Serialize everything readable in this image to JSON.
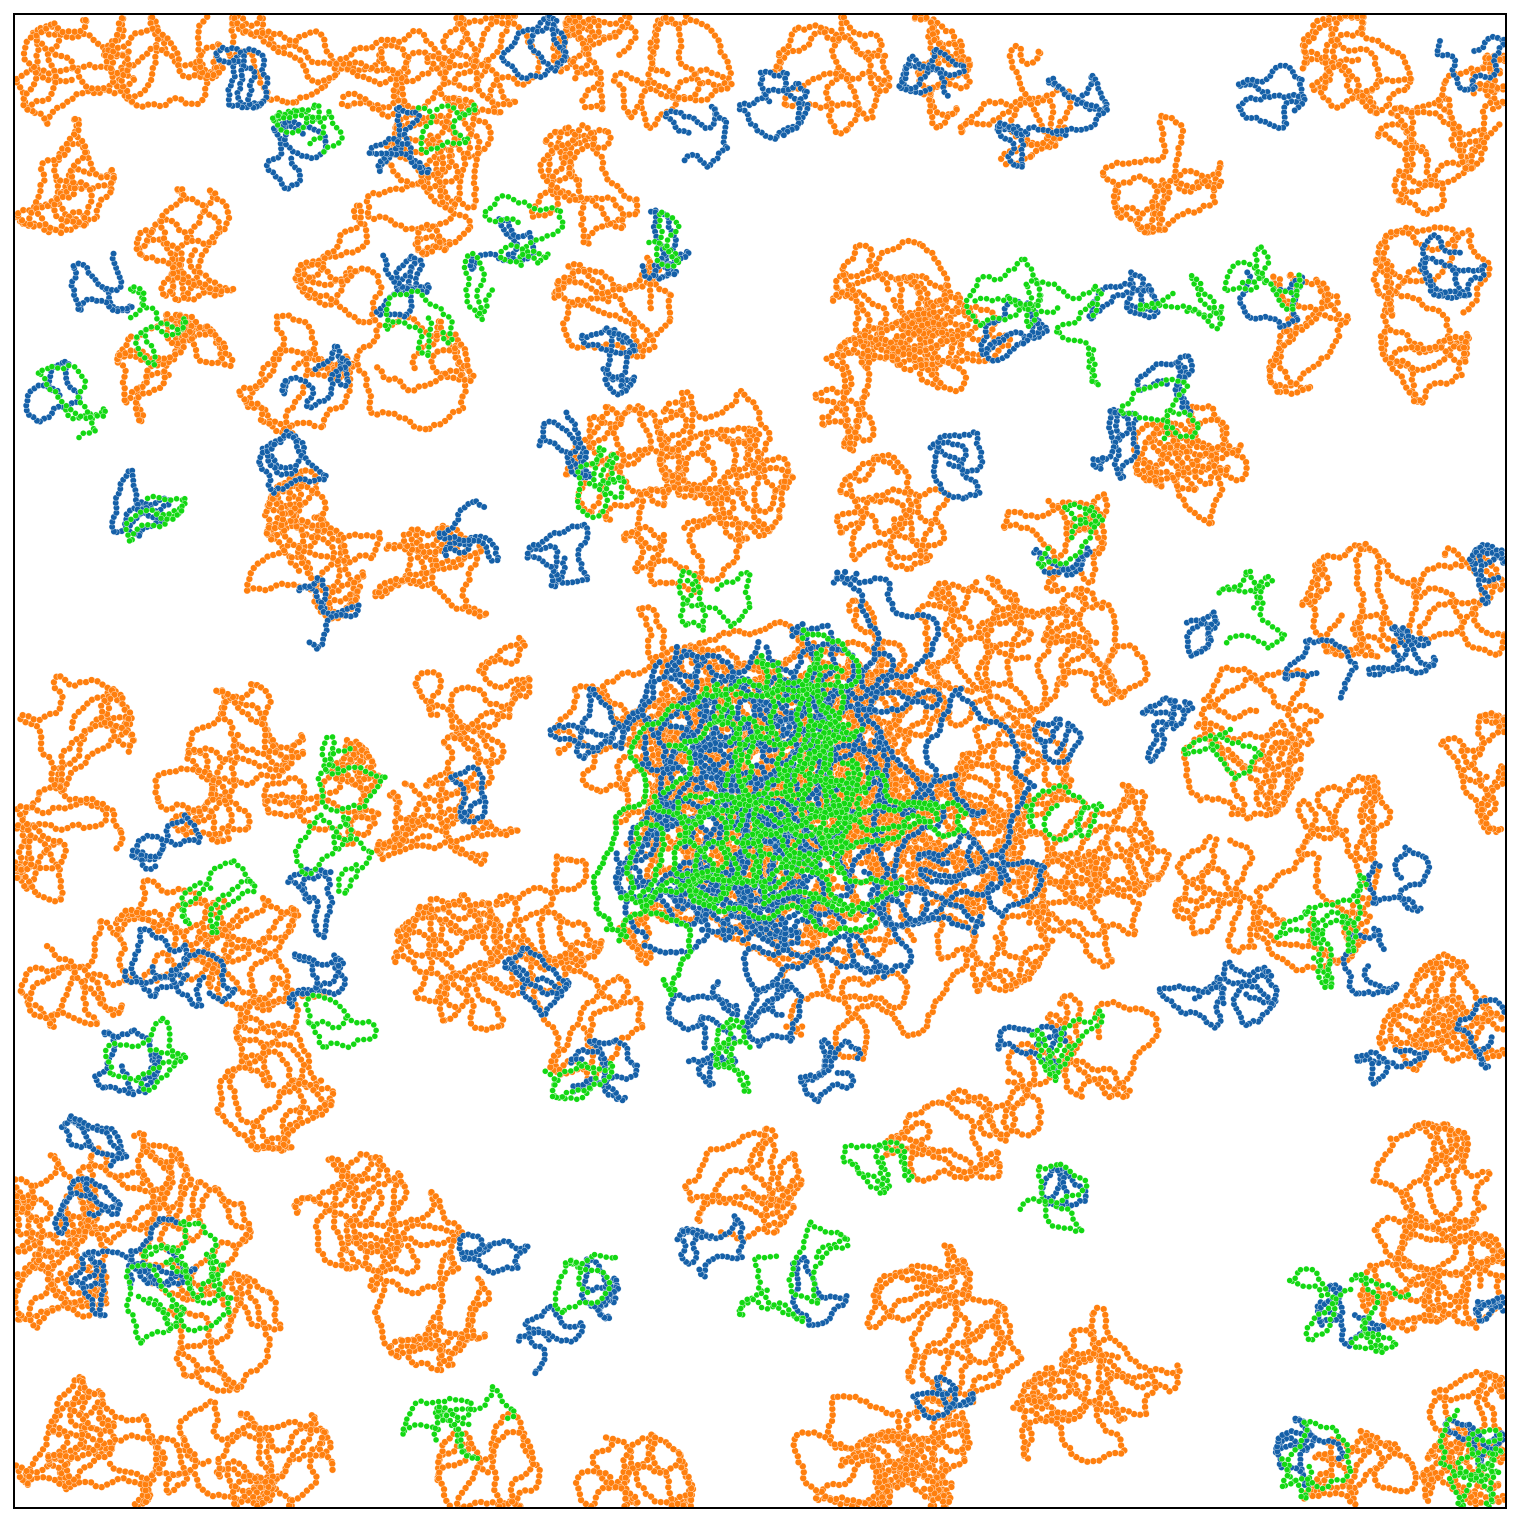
{
  "image": {
    "kind": "polymer-chain-simulation-snapshot",
    "background_color": "#ffffff",
    "frame_color": "#000000"
  },
  "species": [
    {
      "id": "orange",
      "color": "#ff7f0e"
    },
    {
      "id": "blue",
      "color": "#1560a8"
    },
    {
      "id": "green",
      "color": "#13d813"
    }
  ]
}
